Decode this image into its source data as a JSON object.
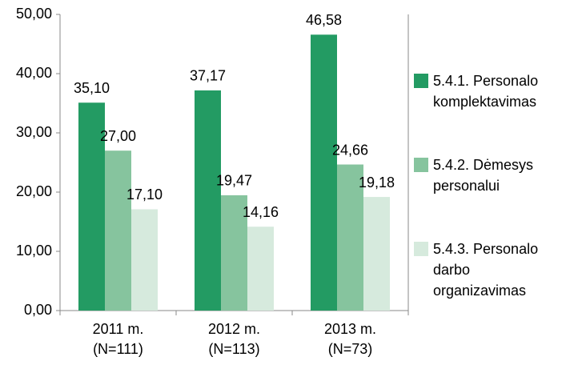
{
  "chart_data": {
    "type": "bar",
    "categories": [
      [
        "2011 m.",
        "(N=111)"
      ],
      [
        "2012 m.",
        "(N=113)"
      ],
      [
        "2013 m.",
        "(N=73)"
      ]
    ],
    "series": [
      {
        "name": "5.4.1. Personalo komplektavimas",
        "color": "#239b63",
        "values": [
          35.1,
          37.17,
          46.58
        ],
        "value_labels": [
          "35,10",
          "37,17",
          "46,58"
        ]
      },
      {
        "name": "5.4.2. Dėmesys personalui",
        "color": "#86c49e",
        "values": [
          27.0,
          19.47,
          24.66
        ],
        "value_labels": [
          "27,00",
          "19,47",
          "24,66"
        ]
      },
      {
        "name": "5.4.3. Personalo darbo organizavimas",
        "color": "#d6eadd",
        "values": [
          17.1,
          14.16,
          19.18
        ],
        "value_labels": [
          "17,10",
          "14,16",
          "19,18"
        ]
      }
    ],
    "ylim": [
      0,
      50
    ],
    "yticks": [
      {
        "value": 0,
        "label": "0,00"
      },
      {
        "value": 10,
        "label": "10,00"
      },
      {
        "value": 20,
        "label": "20,00"
      },
      {
        "value": 30,
        "label": "30,00"
      },
      {
        "value": 40,
        "label": "40,00"
      },
      {
        "value": 50,
        "label": "50,00"
      }
    ],
    "legend": "right"
  }
}
